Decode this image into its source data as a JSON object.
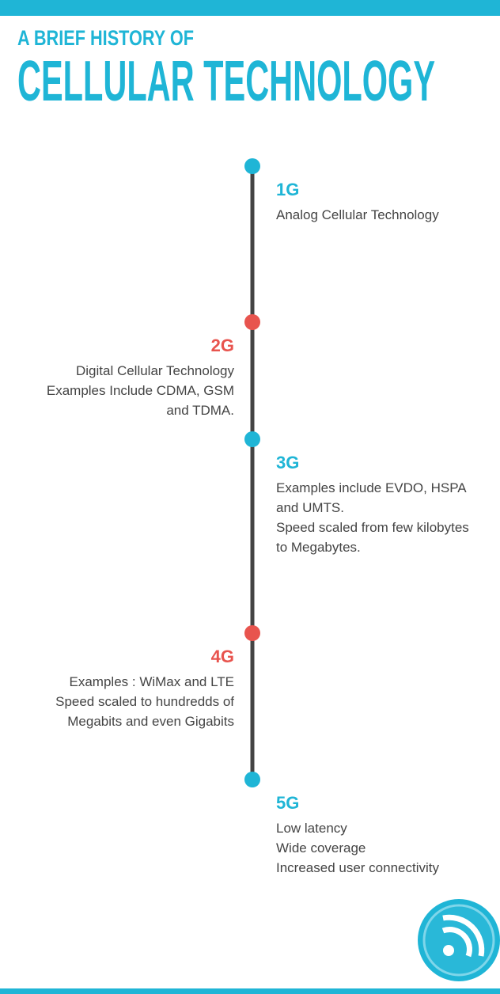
{
  "header": {
    "kicker": "A BRIEF HISTORY OF",
    "title": "CELLULAR TECHNOLOGY"
  },
  "timeline": [
    {
      "generation": "1G",
      "side": "right",
      "color": "#1fb5d6",
      "lines": [
        "Analog Cellular Technology"
      ]
    },
    {
      "generation": "2G",
      "side": "left",
      "color": "#e8544e",
      "lines": [
        "Digital Cellular Technology",
        "Examples Include CDMA, GSM",
        "and TDMA."
      ]
    },
    {
      "generation": "3G",
      "side": "right",
      "color": "#1fb5d6",
      "lines": [
        "Examples include EVDO, HSPA",
        "and UMTS.",
        "Speed scaled from few kilobytes",
        "to Megabytes."
      ]
    },
    {
      "generation": "4G",
      "side": "left",
      "color": "#e8544e",
      "lines": [
        "Examples : WiMax and LTE",
        "Speed scaled to hundredds of",
        "Megabits and even Gigabits"
      ]
    },
    {
      "generation": "5G",
      "side": "right",
      "color": "#1fb5d6",
      "lines": [
        "Low latency",
        "Wide coverage",
        "Increased user connectivity"
      ]
    }
  ]
}
